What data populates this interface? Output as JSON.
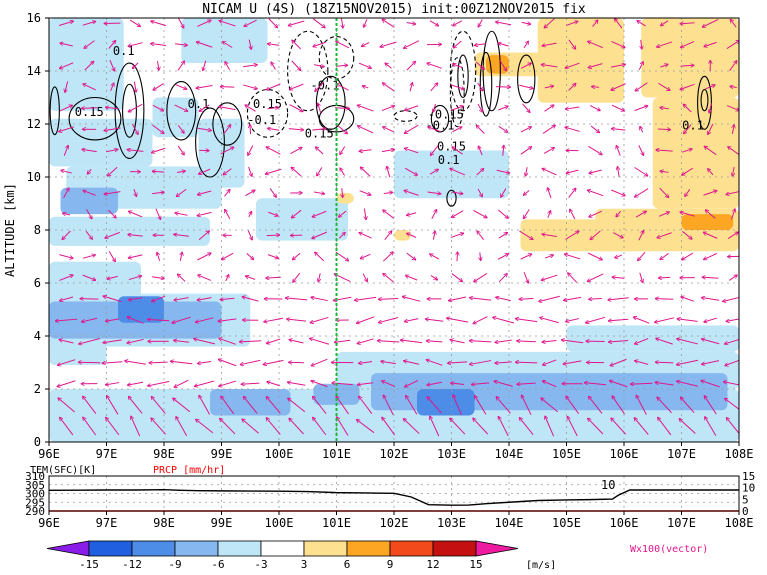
{
  "chart_data": [
    {
      "type": "heatmap",
      "title": "NICAM U (4S) (18Z15NOV2015) init:00Z12NOV2015 fix",
      "xlabel": "",
      "ylabel": "ALTITUDE [km]",
      "xlim": [
        96,
        108
      ],
      "ylim": [
        0,
        16
      ],
      "x_ticks": [
        "96E",
        "97E",
        "98E",
        "99E",
        "100E",
        "101E",
        "102E",
        "103E",
        "104E",
        "105E",
        "106E",
        "107E",
        "108E"
      ],
      "y_ticks": [
        "0",
        "2",
        "4",
        "6",
        "8",
        "10",
        "12",
        "14",
        "16"
      ],
      "marker_line_lon": 101,
      "grid": true,
      "fill_cells": [
        {
          "lon0": 96.0,
          "lon1": 97.3,
          "z0": 12.5,
          "z1": 16.0,
          "value": -4
        },
        {
          "lon0": 98.3,
          "lon1": 99.8,
          "z0": 14.3,
          "z1": 16.0,
          "value": -4
        },
        {
          "lon0": 97.8,
          "lon1": 98.6,
          "z0": 11.5,
          "z1": 13.0,
          "value": -4
        },
        {
          "lon0": 98.6,
          "lon1": 99.4,
          "z0": 9.6,
          "z1": 12.2,
          "value": -4
        },
        {
          "lon0": 96.0,
          "lon1": 97.8,
          "z0": 10.4,
          "z1": 12.2,
          "value": -4
        },
        {
          "lon0": 96.3,
          "lon1": 99.0,
          "z0": 8.8,
          "z1": 10.4,
          "value": -4
        },
        {
          "lon0": 96.2,
          "lon1": 97.2,
          "z0": 8.6,
          "z1": 9.6,
          "value": -7
        },
        {
          "lon0": 96.0,
          "lon1": 98.8,
          "z0": 7.4,
          "z1": 8.5,
          "value": -4
        },
        {
          "lon0": 99.6,
          "lon1": 101.2,
          "z0": 7.6,
          "z1": 9.2,
          "value": -4
        },
        {
          "lon0": 102.0,
          "lon1": 104.0,
          "z0": 9.2,
          "z1": 11.0,
          "value": -4
        },
        {
          "lon0": 96.0,
          "lon1": 97.6,
          "z0": 5.2,
          "z1": 6.8,
          "value": -4
        },
        {
          "lon0": 96.0,
          "lon1": 99.5,
          "z0": 3.6,
          "z1": 5.6,
          "value": -4
        },
        {
          "lon0": 96.0,
          "lon1": 99.0,
          "z0": 3.9,
          "z1": 5.3,
          "value": -7
        },
        {
          "lon0": 97.2,
          "lon1": 98.0,
          "z0": 4.5,
          "z1": 5.5,
          "value": -10
        },
        {
          "lon0": 96.0,
          "lon1": 97.0,
          "z0": 2.9,
          "z1": 3.8,
          "value": -4
        },
        {
          "lon0": 96.0,
          "lon1": 108.0,
          "z0": 0.0,
          "z1": 2.0,
          "value": -4
        },
        {
          "lon0": 101.0,
          "lon1": 108.0,
          "z0": 2.0,
          "z1": 3.4,
          "value": -4
        },
        {
          "lon0": 105.0,
          "lon1": 108.0,
          "z0": 3.4,
          "z1": 4.4,
          "value": -4
        },
        {
          "lon0": 101.6,
          "lon1": 107.8,
          "z0": 1.2,
          "z1": 2.6,
          "value": -7
        },
        {
          "lon0": 102.4,
          "lon1": 103.4,
          "z0": 1.0,
          "z1": 2.0,
          "value": -10
        },
        {
          "lon0": 98.8,
          "lon1": 100.2,
          "z0": 1.0,
          "z1": 2.0,
          "value": -7
        },
        {
          "lon0": 100.6,
          "lon1": 101.4,
          "z0": 1.4,
          "z1": 2.2,
          "value": -7
        },
        {
          "lon0": 103.4,
          "lon1": 104.6,
          "z0": 13.8,
          "z1": 14.7,
          "value": 4
        },
        {
          "lon0": 103.6,
          "lon1": 104.0,
          "z0": 13.9,
          "z1": 14.6,
          "value": 7
        },
        {
          "lon0": 104.5,
          "lon1": 106.0,
          "z0": 12.8,
          "z1": 16.0,
          "value": 4
        },
        {
          "lon0": 106.3,
          "lon1": 108.0,
          "z0": 13.0,
          "z1": 16.0,
          "value": 4
        },
        {
          "lon0": 106.5,
          "lon1": 108.0,
          "z0": 8.8,
          "z1": 13.0,
          "value": 4
        },
        {
          "lon0": 104.2,
          "lon1": 106.2,
          "z0": 7.2,
          "z1": 8.4,
          "value": 4
        },
        {
          "lon0": 105.5,
          "lon1": 108.0,
          "z0": 7.2,
          "z1": 8.8,
          "value": 4
        },
        {
          "lon0": 107.0,
          "lon1": 107.9,
          "z0": 8.0,
          "z1": 8.6,
          "value": 7
        },
        {
          "lon0": 102.0,
          "lon1": 102.3,
          "z0": 7.6,
          "z1": 8.0,
          "value": 4
        },
        {
          "lon0": 101.0,
          "lon1": 101.3,
          "z0": 9.0,
          "z1": 9.4,
          "value": 4
        }
      ],
      "contours": [
        {
          "lon": 96.1,
          "z": 12.5,
          "rx": 0.08,
          "rz": 0.9,
          "value": 0.15,
          "dashed": false
        },
        {
          "lon": 96.8,
          "z": 12.2,
          "rx": 0.45,
          "rz": 0.8,
          "value": 0.15,
          "dashed": false
        },
        {
          "lon": 97.4,
          "z": 12.5,
          "rx": 0.25,
          "rz": 1.8,
          "value": 0.15,
          "dashed": false
        },
        {
          "lon": 97.4,
          "z": 12.5,
          "rx": 0.12,
          "rz": 1.0,
          "value": 0.15,
          "dashed": false
        },
        {
          "lon": 98.3,
          "z": 12.5,
          "rx": 0.25,
          "rz": 1.1,
          "value": 0.1,
          "dashed": false
        },
        {
          "lon": 98.8,
          "z": 11.3,
          "rx": 0.25,
          "rz": 1.3,
          "value": 0.1,
          "dashed": false
        },
        {
          "lon": 99.1,
          "z": 12.0,
          "rx": 0.25,
          "rz": 0.8,
          "value": 0.15,
          "dashed": false
        },
        {
          "lon": 99.8,
          "z": 12.4,
          "rx": 0.35,
          "rz": 0.9,
          "value": -0.15,
          "dashed": true
        },
        {
          "lon": 100.5,
          "z": 14.0,
          "rx": 0.35,
          "rz": 1.5,
          "value": -0.1,
          "dashed": true
        },
        {
          "lon": 100.9,
          "z": 12.8,
          "rx": 0.25,
          "rz": 1.0,
          "value": 0.15,
          "dashed": false
        },
        {
          "lon": 101.0,
          "z": 12.2,
          "rx": 0.3,
          "rz": 0.5,
          "value": 0.15,
          "dashed": false
        },
        {
          "lon": 101.0,
          "z": 14.5,
          "rx": 0.3,
          "rz": 0.8,
          "value": -0.1,
          "dashed": true
        },
        {
          "lon": 102.2,
          "z": 12.3,
          "rx": 0.2,
          "rz": 0.2,
          "value": -0.1,
          "dashed": true
        },
        {
          "lon": 102.8,
          "z": 12.2,
          "rx": 0.15,
          "rz": 0.5,
          "value": 0.15,
          "dashed": false
        },
        {
          "lon": 103.2,
          "z": 14.0,
          "rx": 0.22,
          "rz": 1.5,
          "value": -0.15,
          "dashed": true
        },
        {
          "lon": 103.1,
          "z": 13.2,
          "rx": 0.12,
          "rz": 1.3,
          "value": -0.1,
          "dashed": true
        },
        {
          "lon": 103.2,
          "z": 13.8,
          "rx": 0.09,
          "rz": 0.8,
          "value": -0.15,
          "dashed": false
        },
        {
          "lon": 103.6,
          "z": 13.5,
          "rx": 0.1,
          "rz": 1.2,
          "value": 0.15,
          "dashed": false
        },
        {
          "lon": 103.7,
          "z": 14.0,
          "rx": 0.15,
          "rz": 1.5,
          "value": -0.1,
          "dashed": false
        },
        {
          "lon": 104.3,
          "z": 13.7,
          "rx": 0.15,
          "rz": 0.9,
          "value": -0.1,
          "dashed": false
        },
        {
          "lon": 107.4,
          "z": 12.8,
          "rx": 0.12,
          "rz": 1.0,
          "value": 0.1,
          "dashed": false
        },
        {
          "lon": 107.4,
          "z": 12.9,
          "rx": 0.06,
          "rz": 0.4,
          "value": 0.1,
          "dashed": false
        },
        {
          "lon": 103.0,
          "z": 9.2,
          "rx": 0.08,
          "rz": 0.3,
          "value": 0.15,
          "dashed": false
        }
      ],
      "contour_labels": [
        {
          "text": "0.1",
          "lon": 97.3,
          "z": 14.6
        },
        {
          "text": "0.15",
          "lon": 96.7,
          "z": 12.3
        },
        {
          "text": "0.1",
          "lon": 98.6,
          "z": 12.6
        },
        {
          "text": "0.15",
          "lon": 99.8,
          "z": 12.6
        },
        {
          "text": "-0.1",
          "lon": 99.7,
          "z": 12.0
        },
        {
          "text": "-0.1",
          "lon": 100.8,
          "z": 13.3
        },
        {
          "text": "0.15",
          "lon": 100.7,
          "z": 11.5
        },
        {
          "text": "-0.1",
          "lon": 102.8,
          "z": 11.8
        },
        {
          "text": "-0.15",
          "lon": 102.9,
          "z": 12.2
        },
        {
          "text": "0.15",
          "lon": 103.0,
          "z": 11.0
        },
        {
          "text": "0.1",
          "lon": 102.95,
          "z": 10.5
        },
        {
          "text": "0.1",
          "lon": 107.2,
          "z": 11.8
        }
      ],
      "vectors": {
        "lon_step": 0.4,
        "z_step": 0.8,
        "approx_direction": "mostly westward with weak vertical motion; strong upward and westward flow below 2 km"
      },
      "colorbar": {
        "levels": [
          "-15",
          "-12",
          "-9",
          "-6",
          "-3",
          "3",
          "6",
          "9",
          "12",
          "15"
        ],
        "colors": [
          "#8a1ee8",
          "#2060e0",
          "#4d8de8",
          "#86b8ef",
          "#bfe6f7",
          "#ffffff",
          "#fde190",
          "#fca623",
          "#f24a1a",
          "#c51012",
          "#ee1aa0"
        ],
        "unit": "[m/s]",
        "vector_note": "Wx100(vector)"
      }
    },
    {
      "type": "line",
      "title": "",
      "left_axis_label": "TEM(SFC)[K]",
      "right_axis_label": "PRCP [mm/hr]",
      "x_ticks": [
        "96E",
        "97E",
        "98E",
        "99E",
        "100E",
        "101E",
        "102E",
        "103E",
        "104E",
        "105E",
        "106E",
        "107E",
        "108E"
      ],
      "left_ticks": [
        "290",
        "295",
        "300",
        "305",
        "310"
      ],
      "right_ticks": [
        "0",
        "5",
        "10",
        "15"
      ],
      "xlim": [
        96,
        108
      ],
      "ylim_left": [
        290,
        310
      ],
      "ylim_right": [
        0,
        15
      ],
      "series": [
        {
          "name": "TEM(SFC)[K]",
          "x": [
            96.0,
            96.5,
            97.0,
            97.5,
            98.0,
            98.3,
            98.6,
            99.0,
            99.5,
            100.0,
            100.5,
            101.0,
            101.5,
            101.8,
            102.0,
            102.3,
            102.6,
            103.0,
            103.3,
            103.6,
            104.0,
            104.5,
            105.0,
            105.4,
            105.8,
            105.9,
            106.1,
            106.5,
            107.0,
            107.5,
            108.0
          ],
          "y": [
            301.8,
            301.9,
            302.0,
            302.0,
            302.2,
            301.8,
            301.6,
            301.5,
            301.4,
            301.3,
            301.1,
            300.5,
            300.3,
            300.2,
            300.1,
            298.0,
            293.6,
            293.3,
            293.4,
            294.2,
            295.0,
            296.0,
            296.3,
            296.5,
            296.8,
            299.0,
            302.0,
            302.0,
            302.0,
            302.0,
            302.0
          ]
        },
        {
          "name": "PRCP [mm/hr]",
          "x": [
            96.0,
            108.0
          ],
          "y": [
            0,
            0
          ]
        }
      ],
      "annotations": [
        {
          "text": "10",
          "lon": 105.6
        }
      ],
      "grid": true
    }
  ]
}
